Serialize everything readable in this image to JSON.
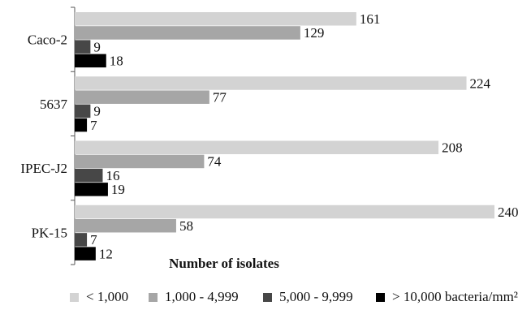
{
  "chart_data": {
    "type": "bar",
    "orientation": "horizontal",
    "categories": [
      "Caco-2",
      "5637",
      "IPEC-J2",
      "PK-15"
    ],
    "series": [
      {
        "name": "< 1,000",
        "values": [
          161,
          224,
          208,
          240
        ],
        "color": "#d3d3d3"
      },
      {
        "name": "1,000 - 4,999",
        "values": [
          129,
          77,
          74,
          58
        ],
        "color": "#a6a6a6"
      },
      {
        "name": "5,000 - 9,999",
        "values": [
          9,
          9,
          16,
          7
        ],
        "color": "#474747"
      },
      {
        "name": "> 10,000 bacteria/mm²",
        "values": [
          18,
          7,
          19,
          12
        ],
        "color": "#000000"
      }
    ],
    "xlabel": "Number of isolates",
    "xlim": [
      0,
      240
    ],
    "grid": false,
    "legend_position": "bottom"
  }
}
